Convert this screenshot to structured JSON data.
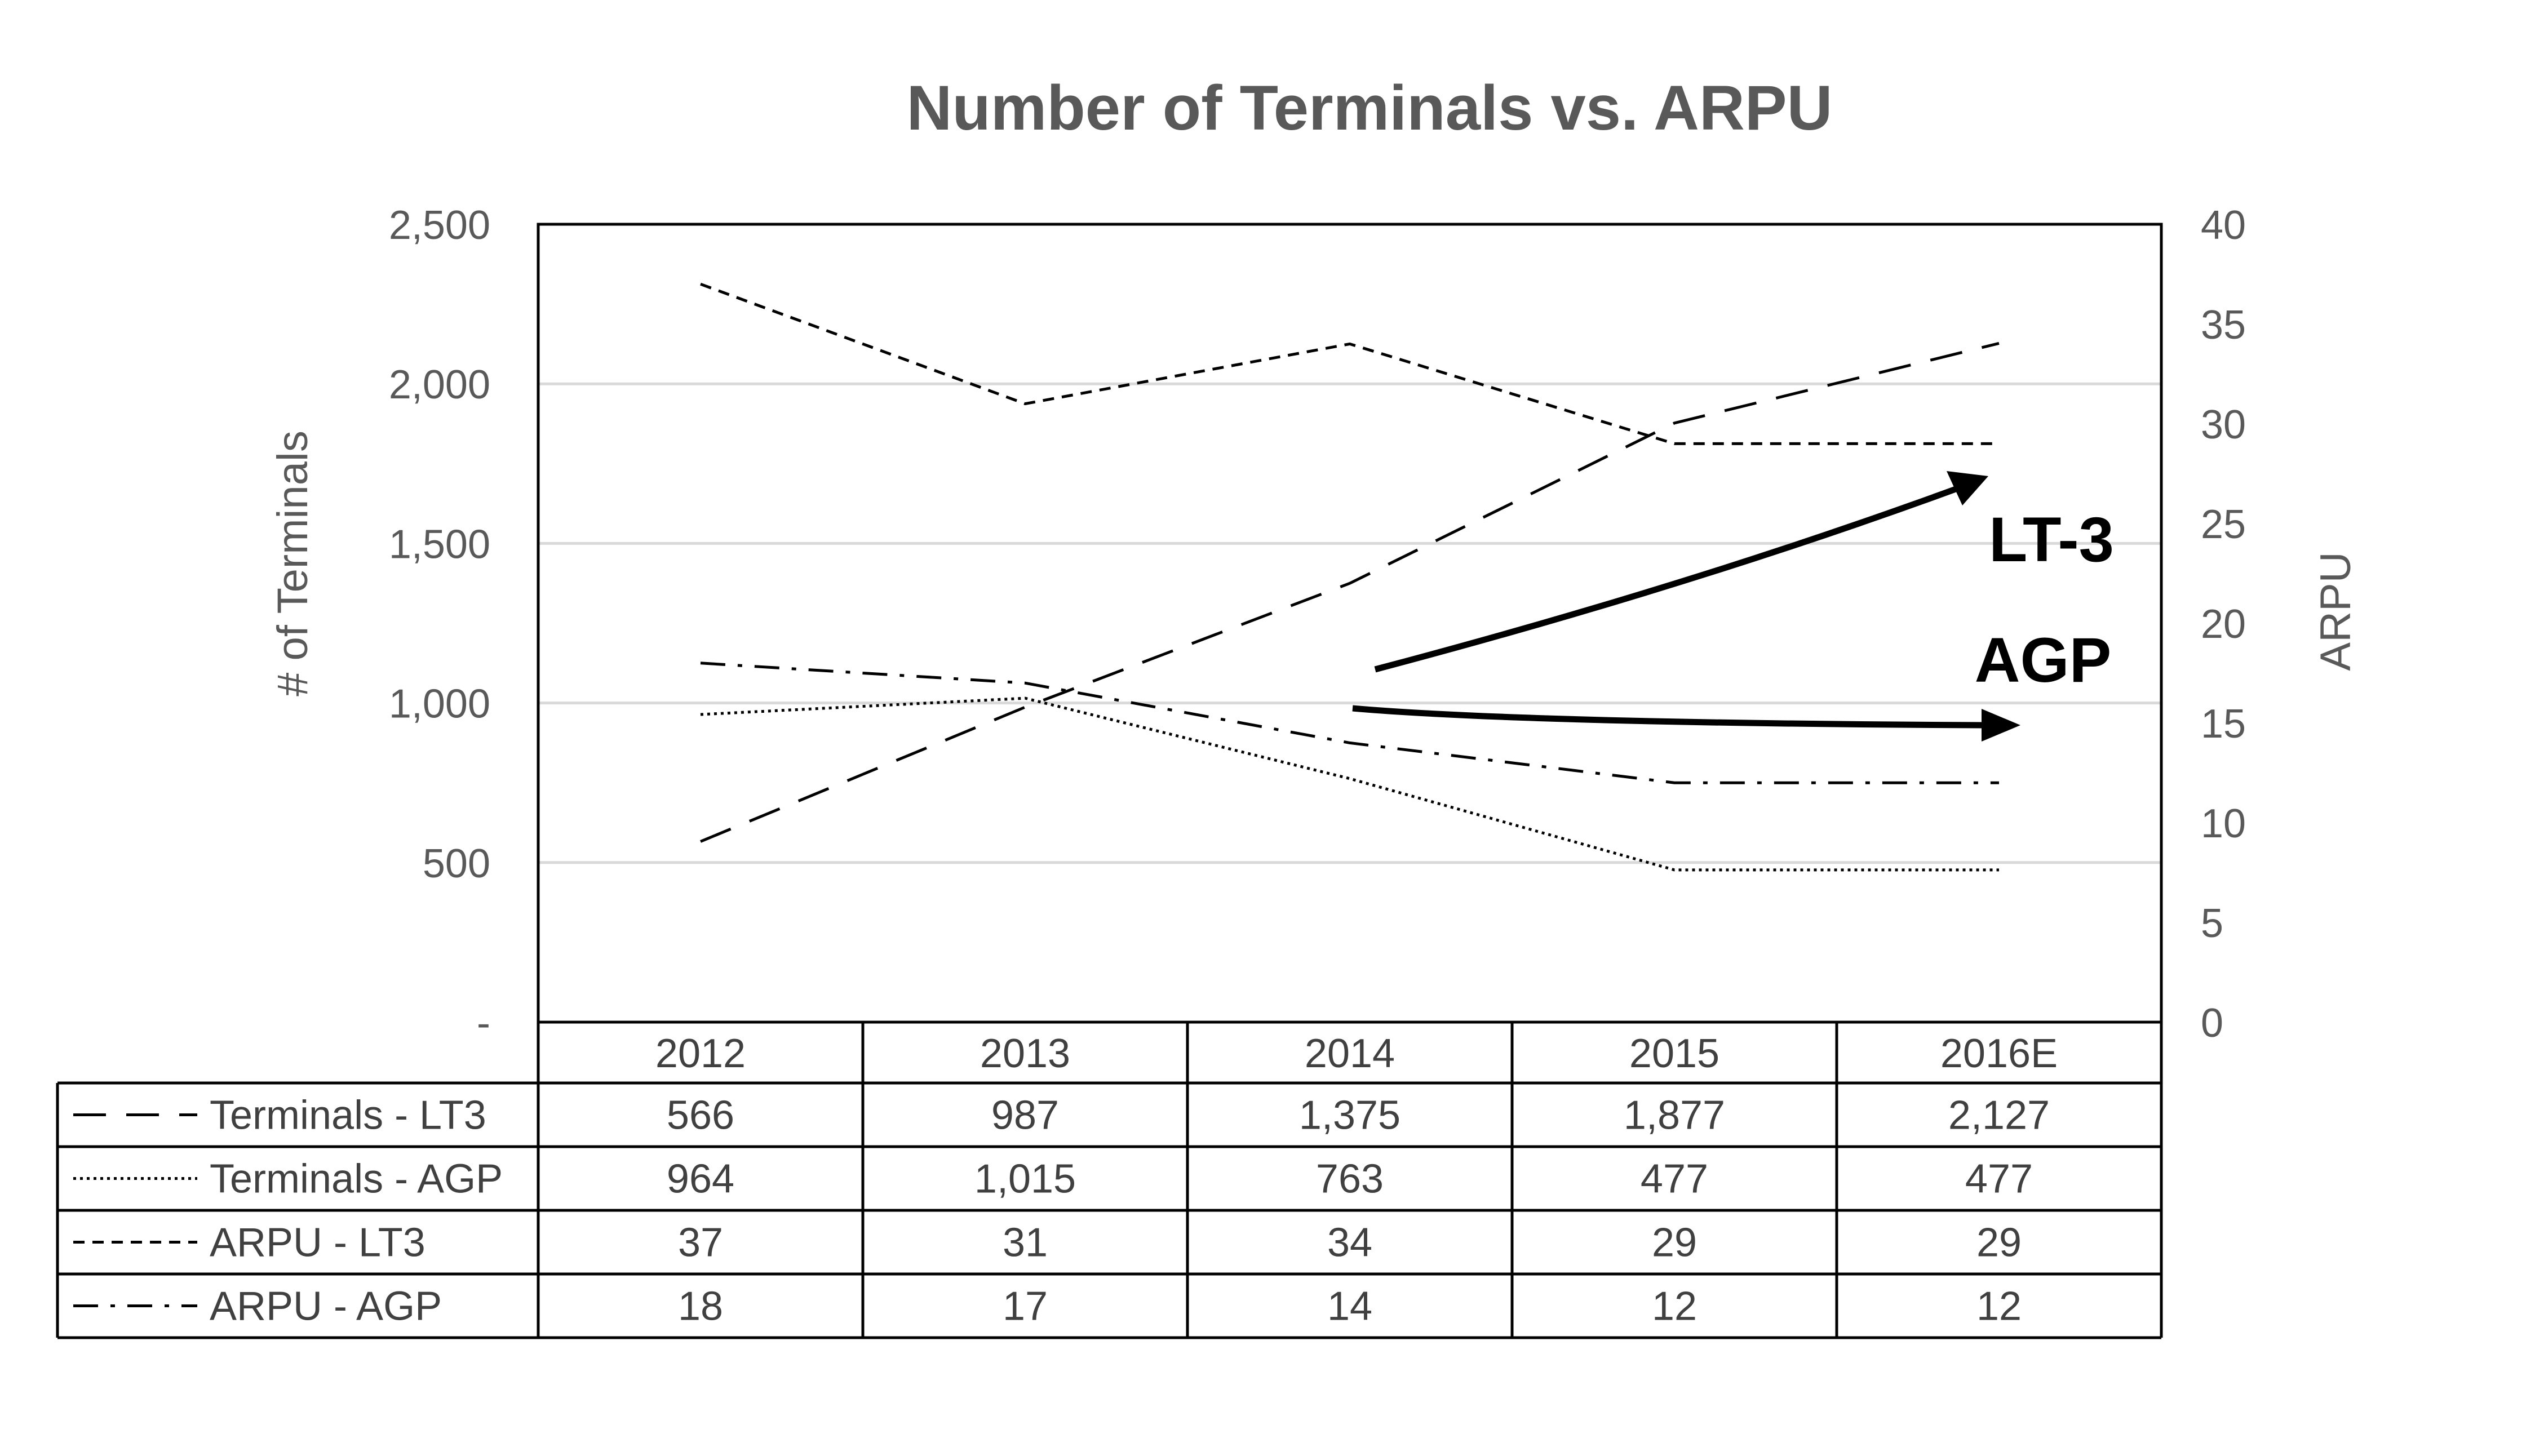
{
  "chart_data": {
    "type": "line",
    "title": "Number of Terminals vs. ARPU",
    "categories": [
      "2012",
      "2013",
      "2014",
      "2015",
      "2016E"
    ],
    "y_left": {
      "label": "# of Terminals",
      "lim": [
        0,
        2500
      ],
      "ticks": [
        "-",
        "500",
        "1,000",
        "1,500",
        "2,000",
        "2,500"
      ]
    },
    "y_right": {
      "label": "ARPU",
      "lim": [
        0,
        40
      ],
      "ticks": [
        "0",
        "5",
        "10",
        "15",
        "20",
        "25",
        "30",
        "35",
        "40"
      ]
    },
    "grid": true,
    "legend": "data table below chart",
    "series": [
      {
        "name": "Terminals - LT3",
        "axis": "left",
        "dash": "long-dash",
        "values": [
          566,
          987,
          1375,
          1877,
          2127
        ],
        "labels": [
          "566",
          "987",
          "1,375",
          "1,877",
          "2,127"
        ]
      },
      {
        "name": "Terminals - AGP",
        "axis": "left",
        "dash": "dotted",
        "values": [
          964,
          1015,
          763,
          477,
          477
        ],
        "labels": [
          "964",
          "1,015",
          "763",
          "477",
          "477"
        ]
      },
      {
        "name": "ARPU - LT3",
        "axis": "right",
        "dash": "short-dash",
        "values": [
          37,
          31,
          34,
          29,
          29
        ],
        "labels": [
          "37",
          "31",
          "34",
          "29",
          "29"
        ]
      },
      {
        "name": "ARPU - AGP",
        "axis": "right",
        "dash": "dash-dot",
        "values": [
          18,
          17,
          14,
          12,
          12
        ],
        "labels": [
          "18",
          "17",
          "14",
          "12",
          "12"
        ]
      }
    ],
    "annotations": [
      {
        "text": "LT-3",
        "trend": "rising arrow"
      },
      {
        "text": "AGP",
        "trend": "flat arrow"
      }
    ],
    "colors": {
      "line": "#000000",
      "text": "#595959",
      "grid": "#d9d9d9"
    }
  }
}
